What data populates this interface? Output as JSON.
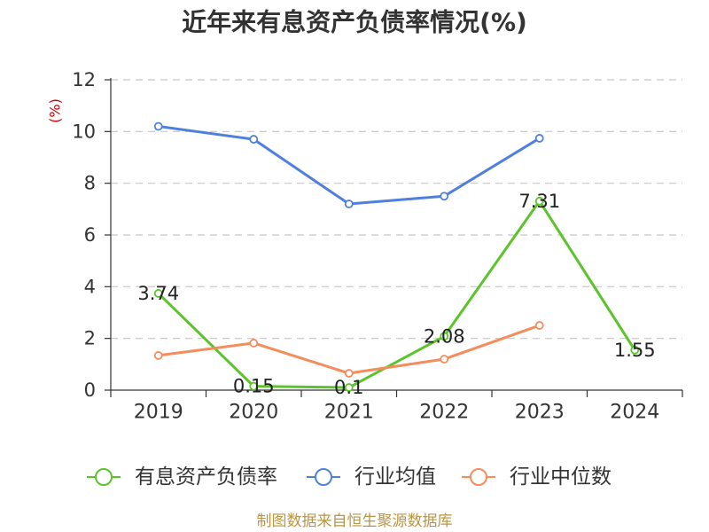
{
  "footer": "制图数据来自恒生聚源数据库",
  "colors": {
    "title": "#333333",
    "text": "#222222",
    "axis": "#333333",
    "grid": "#c8c8c8",
    "ylabel": "#cc0000",
    "footer": "#b99543",
    "background": "#ffffff"
  },
  "chart_data": {
    "type": "line",
    "title": "近年来有息资产负债率情况(%)",
    "xlabel": "",
    "ylabel": "(%)",
    "categories": [
      "2019",
      "2020",
      "2021",
      "2022",
      "2023",
      "2024"
    ],
    "ylim": [
      0,
      12
    ],
    "yticks": [
      0,
      2,
      4,
      6,
      8,
      10,
      12
    ],
    "grid": true,
    "legend": "bottom",
    "series": [
      {
        "name": "有息资产负债率",
        "color": "#5cc42b",
        "values": [
          3.74,
          0.15,
          0.1,
          2.08,
          7.31,
          1.55
        ],
        "show_labels": true
      },
      {
        "name": "行业均值",
        "color": "#4f80de",
        "values": [
          10.2,
          9.7,
          7.2,
          7.5,
          9.74,
          null
        ],
        "show_labels": false
      },
      {
        "name": "行业中位数",
        "color": "#f48c5b",
        "values": [
          1.34,
          1.82,
          0.65,
          1.2,
          2.5,
          null
        ],
        "show_labels": false
      }
    ]
  }
}
